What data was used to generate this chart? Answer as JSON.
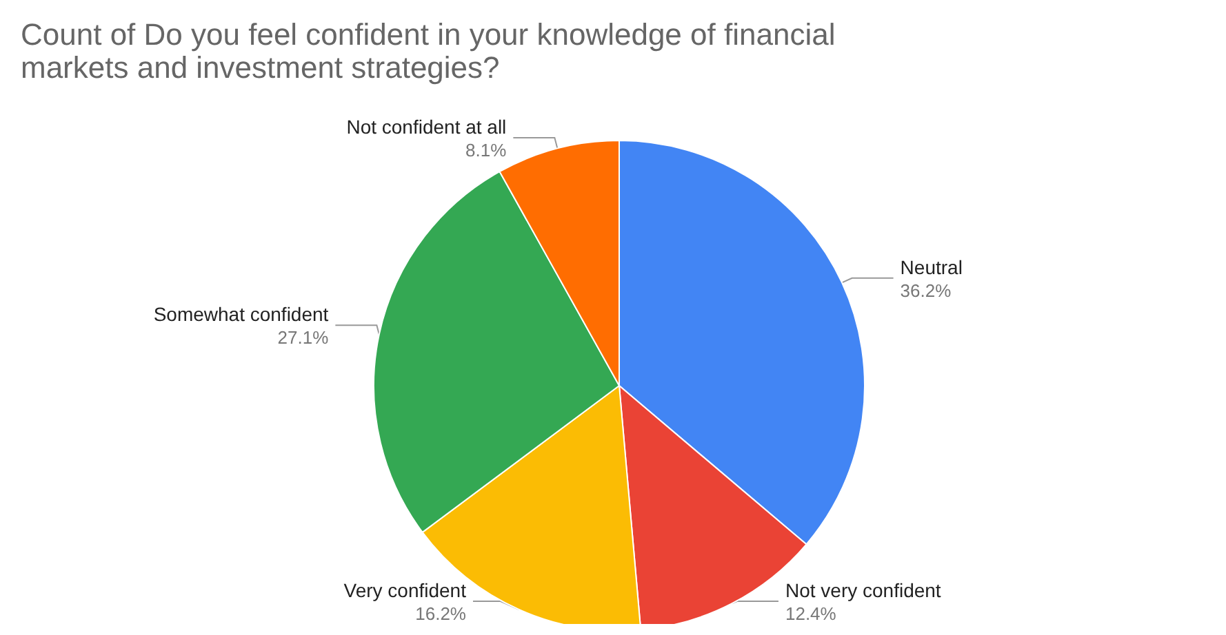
{
  "chart_data": {
    "type": "pie",
    "title": "Count of Do you feel confident in your knowledge of financial\nmarkets and investment strategies?",
    "categories": [
      "Neutral",
      "Not very confident",
      "Very confident",
      "Somewhat confident",
      "Not confident at all"
    ],
    "values": [
      36.2,
      12.4,
      16.2,
      27.1,
      8.1
    ],
    "colors": [
      "#4285f4",
      "#ea4335",
      "#fbbc04",
      "#34a853",
      "#ff6d01"
    ],
    "value_labels": [
      "36.2%",
      "12.4%",
      "16.2%",
      "27.1%",
      "8.1%"
    ],
    "legend": false
  }
}
